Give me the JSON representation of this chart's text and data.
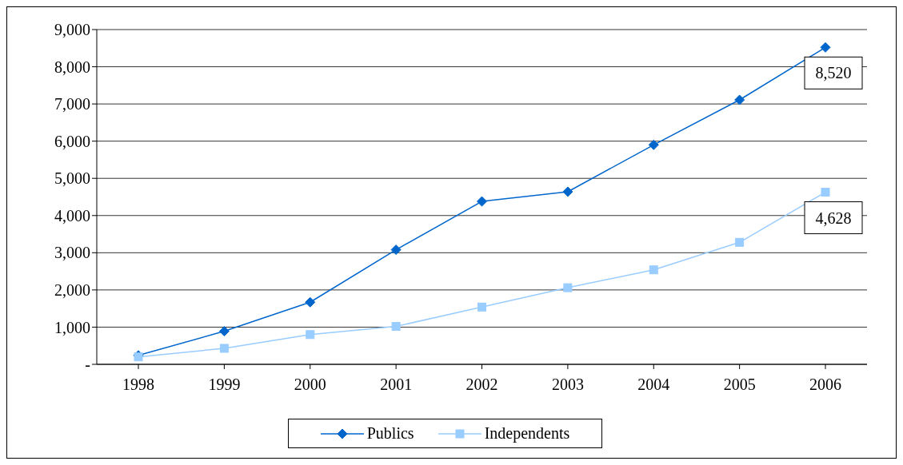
{
  "chart_data": {
    "type": "line",
    "categories": [
      "1998",
      "1999",
      "2000",
      "2001",
      "2002",
      "2003",
      "2004",
      "2005",
      "2006"
    ],
    "series": [
      {
        "name": "Publics",
        "color": "#0066cc",
        "marker": "diamond",
        "values": [
          240,
          890,
          1670,
          3080,
          4380,
          4640,
          5900,
          7110,
          8520
        ],
        "value_labels": [
          null,
          null,
          null,
          null,
          null,
          null,
          null,
          null,
          "8,520"
        ]
      },
      {
        "name": "Independents",
        "color": "#99ccff",
        "marker": "square",
        "values": [
          200,
          430,
          800,
          1020,
          1540,
          2060,
          2540,
          3280,
          4628
        ],
        "value_labels": [
          null,
          null,
          null,
          null,
          null,
          null,
          null,
          null,
          "4,628"
        ]
      }
    ],
    "ylim": [
      0,
      9000
    ],
    "yticks": [
      {
        "value": 0,
        "label": "-"
      },
      {
        "value": 1000,
        "label": "1,000"
      },
      {
        "value": 2000,
        "label": "2,000"
      },
      {
        "value": 3000,
        "label": "3,000"
      },
      {
        "value": 4000,
        "label": "4,000"
      },
      {
        "value": 5000,
        "label": "5,000"
      },
      {
        "value": 6000,
        "label": "6,000"
      },
      {
        "value": 7000,
        "label": "7,000"
      },
      {
        "value": 8000,
        "label": "8,000"
      },
      {
        "value": 9000,
        "label": "9,000"
      }
    ],
    "grid": "y",
    "legend": "bottom"
  }
}
